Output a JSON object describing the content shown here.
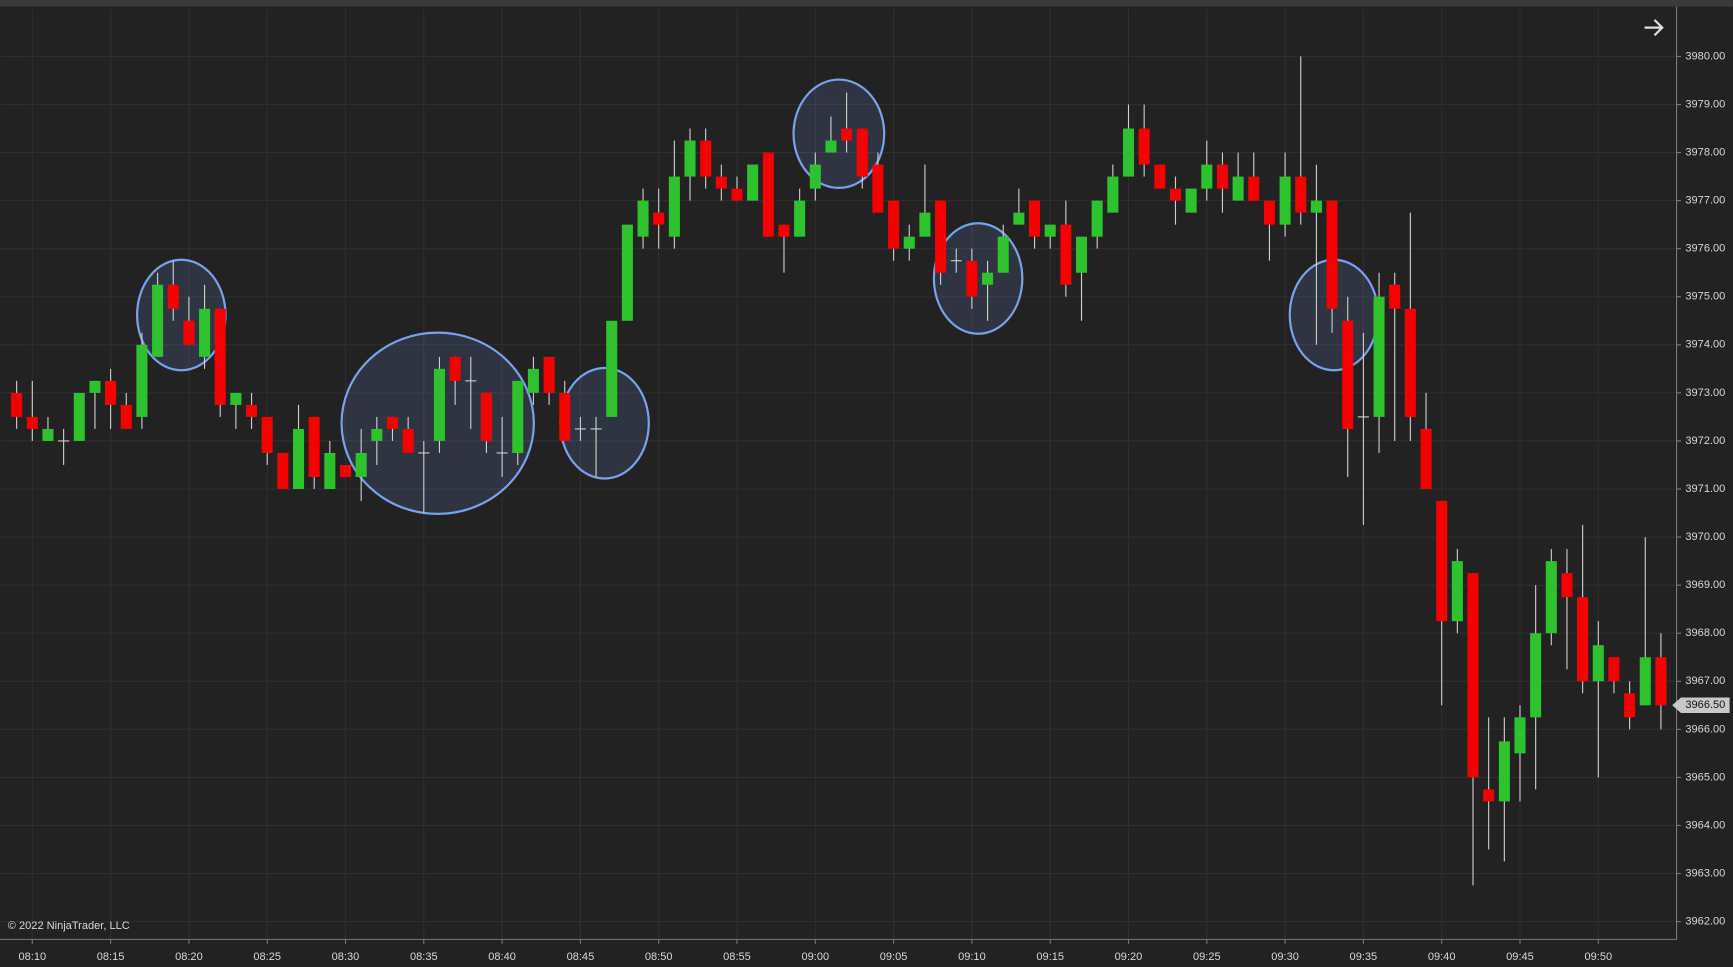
{
  "chart_data": {
    "type": "candlestick",
    "up_color": "#2fc22f",
    "down_color": "#f40000",
    "wick_color": "#d0d0d0",
    "grid": true,
    "copyright": "© 2022 NinjaTrader, LLC",
    "categories": [
      null,
      "08:10",
      null,
      null,
      null,
      null,
      "08:15",
      null,
      null,
      null,
      null,
      "08:20",
      null,
      null,
      null,
      null,
      "08:25",
      null,
      null,
      null,
      null,
      "08:30",
      null,
      null,
      null,
      null,
      "08:35",
      null,
      null,
      null,
      null,
      "08:40",
      null,
      null,
      null,
      null,
      "08:45",
      null,
      null,
      null,
      null,
      "08:50",
      null,
      null,
      null,
      null,
      "08:55",
      null,
      null,
      null,
      null,
      "09:00",
      null,
      null,
      null,
      null,
      "09:05",
      null,
      null,
      null,
      null,
      "09:10",
      null,
      null,
      null,
      null,
      "09:15",
      null,
      null,
      null,
      null,
      "09:20",
      null,
      null,
      null,
      null,
      "09:25",
      null,
      null,
      null,
      null,
      "09:30",
      null,
      null,
      null,
      null,
      "09:35",
      null,
      null,
      null,
      null,
      "09:40",
      null,
      null,
      null,
      null,
      "09:45",
      null,
      null,
      null,
      null,
      "09:50",
      null,
      null,
      null,
      null
    ],
    "open": [
      3973,
      3972.5,
      3972,
      3972,
      3972,
      3973,
      3973.25,
      3972.75,
      3972.5,
      3973.75,
      3975.25,
      3974.5,
      3973.75,
      3974.75,
      3972.75,
      3972.75,
      3972.5,
      3971.75,
      3971,
      3972.5,
      3971,
      3971.5,
      3971.25,
      3972,
      3972.5,
      3972.25,
      3971.75,
      3972,
      3973.75,
      3973.25,
      3973,
      3971.75,
      3971.75,
      3973,
      3973.75,
      3973,
      3972.25,
      3972.25,
      3972.5,
      3974.5,
      3976.25,
      3976.75,
      3976.25,
      3977.5,
      3978.25,
      3977.5,
      3977.25,
      3977,
      3978,
      3976.5,
      3976.25,
      3977.25,
      3978,
      3978.5,
      3978.5,
      3977.75,
      3977,
      3976,
      3976.25,
      3977,
      3975.75,
      3975.75,
      3975.25,
      3975.5,
      3976.5,
      3977,
      3976.25,
      3976.5,
      3975.5,
      3976.25,
      3976.75,
      3977.5,
      3978.5,
      3977.75,
      3977.25,
      3976.75,
      3977.25,
      3977.75,
      3977,
      3977.5,
      3977,
      3976.5,
      3977.5,
      3976.75,
      3977,
      3974.5,
      3972.5,
      3972.5,
      3975.25,
      3974.75,
      3972.25,
      3970.75,
      3968.25,
      3969.25,
      3964.75,
      3964.5,
      3965.5,
      3966.25,
      3968,
      3969.25,
      3968.75,
      3967,
      3967.5,
      3966.75,
      3966.5,
      3967.5
    ],
    "high": [
      3973.25,
      3973.25,
      3972.5,
      3972.25,
      3973,
      3973.25,
      3973.5,
      3973,
      3974.25,
      3975.5,
      3975.75,
      3975,
      3975.25,
      3974.75,
      3973,
      3973,
      3972.5,
      3971.75,
      3972.75,
      3972.5,
      3972,
      3971.5,
      3972.25,
      3972.5,
      3972.5,
      3972.5,
      3972,
      3973.75,
      3973.75,
      3973.75,
      3973,
      3972.5,
      3973.25,
      3973.75,
      3973.75,
      3973.25,
      3972.5,
      3972.5,
      3974.5,
      3976.5,
      3977.25,
      3977.25,
      3978.25,
      3978.5,
      3978.5,
      3977.75,
      3977.5,
      3977.75,
      3978,
      3976.5,
      3977.25,
      3978,
      3978.75,
      3979.25,
      3978.5,
      3978,
      3977,
      3976.5,
      3977.75,
      3977,
      3976,
      3976,
      3975.75,
      3976.5,
      3977.25,
      3977,
      3976.5,
      3977,
      3976.25,
      3977,
      3977.75,
      3979,
      3979,
      3977.75,
      3977.5,
      3977.25,
      3978.25,
      3978,
      3978,
      3978,
      3977,
      3978,
      3980,
      3977.75,
      3977,
      3975,
      3974.25,
      3975.5,
      3975.5,
      3976.75,
      3973,
      3970.75,
      3969.75,
      3969.25,
      3966.25,
      3966.25,
      3966.5,
      3969,
      3969.75,
      3969.75,
      3970.25,
      3968.25,
      3967.5,
      3967,
      3970,
      3968
    ],
    "low": [
      3972.25,
      3972,
      3972,
      3971.5,
      3972,
      3972.25,
      3972.25,
      3972.25,
      3972.25,
      3973.75,
      3974.5,
      3974,
      3973.5,
      3972.5,
      3972.25,
      3972.25,
      3971.5,
      3971,
      3971,
      3971,
      3971,
      3971.25,
      3970.75,
      3971.5,
      3972,
      3971.75,
      3970.5,
      3971.75,
      3972.75,
      3972.25,
      3971.75,
      3971.25,
      3971.5,
      3972.75,
      3972.75,
      3972,
      3972,
      3971.25,
      3972.5,
      3974.5,
      3976,
      3976,
      3976,
      3977,
      3977.25,
      3977,
      3977,
      3977,
      3976.25,
      3975.5,
      3976.25,
      3977,
      3978,
      3978,
      3977.25,
      3976.75,
      3975.75,
      3975.75,
      3976.25,
      3975.25,
      3975.5,
      3974.75,
      3974.5,
      3975.5,
      3976.5,
      3976,
      3976,
      3975,
      3974.5,
      3976,
      3976.75,
      3977.5,
      3977.5,
      3977.25,
      3976.5,
      3976.75,
      3977,
      3976.75,
      3977,
      3977,
      3975.75,
      3976.25,
      3976.5,
      3974,
      3974.25,
      3971.25,
      3970.25,
      3971.75,
      3972,
      3972,
      3971,
      3966.5,
      3968,
      3962.75,
      3963.5,
      3963.25,
      3964.5,
      3964.75,
      3967.75,
      3967.25,
      3966.75,
      3965,
      3966.75,
      3966,
      3966.5,
      3966
    ],
    "close": [
      3972.5,
      3972.25,
      3972.25,
      3972,
      3973,
      3973.25,
      3972.75,
      3972.25,
      3974,
      3975.25,
      3974.75,
      3974,
      3974.75,
      3972.75,
      3973,
      3972.5,
      3971.75,
      3971,
      3972.25,
      3971.25,
      3971.75,
      3971.25,
      3971.75,
      3972.25,
      3972.25,
      3971.75,
      3971.75,
      3973.5,
      3973.25,
      3973.25,
      3972,
      3971.75,
      3973.25,
      3973.5,
      3973,
      3972,
      3972.25,
      3972.25,
      3974.5,
      3976.5,
      3977,
      3976.5,
      3977.5,
      3978.25,
      3977.5,
      3977.25,
      3977,
      3977.75,
      3976.25,
      3976.25,
      3977,
      3977.75,
      3978.25,
      3978.25,
      3977.5,
      3976.75,
      3976,
      3976.25,
      3976.75,
      3975.5,
      3975.75,
      3975,
      3975.5,
      3976.25,
      3976.75,
      3976.25,
      3976.5,
      3975.25,
      3976.25,
      3977,
      3977.5,
      3978.5,
      3977.75,
      3977.25,
      3977,
      3977.25,
      3977.75,
      3977.25,
      3977.5,
      3977,
      3976.5,
      3977.5,
      3976.75,
      3977,
      3974.75,
      3972.25,
      3972.5,
      3975,
      3974.75,
      3972.5,
      3971,
      3968.25,
      3969.5,
      3965,
      3964.5,
      3965.75,
      3966.25,
      3968,
      3969.5,
      3968.75,
      3967,
      3967.75,
      3967,
      3966.25,
      3967.5,
      3966.5
    ],
    "ylim": [
      3961.63,
      3980.99
    ],
    "yticks": [
      {
        "value": 3962,
        "label": "3962.00"
      },
      {
        "value": 3963,
        "label": "3963.00"
      },
      {
        "value": 3964,
        "label": "3964.00"
      },
      {
        "value": 3965,
        "label": "3965.00"
      },
      {
        "value": 3966,
        "label": "3966.00"
      },
      {
        "value": 3967,
        "label": "3967.00"
      },
      {
        "value": 3968,
        "label": "3968.00"
      },
      {
        "value": 3969,
        "label": "3969.00"
      },
      {
        "value": 3970,
        "label": "3970.00"
      },
      {
        "value": 3971,
        "label": "3971.00"
      },
      {
        "value": 3972,
        "label": "3972.00"
      },
      {
        "value": 3973,
        "label": "3973.00"
      },
      {
        "value": 3974,
        "label": "3974.00"
      },
      {
        "value": 3975,
        "label": "3975.00"
      },
      {
        "value": 3976,
        "label": "3976.00"
      },
      {
        "value": 3977,
        "label": "3977.00"
      },
      {
        "value": 3978,
        "label": "3978.00"
      },
      {
        "value": 3979,
        "label": "3979.00"
      },
      {
        "value": 3980,
        "label": "3980.00"
      }
    ],
    "last_price": {
      "value": 3966.5,
      "label": "3966.50"
    }
  }
}
